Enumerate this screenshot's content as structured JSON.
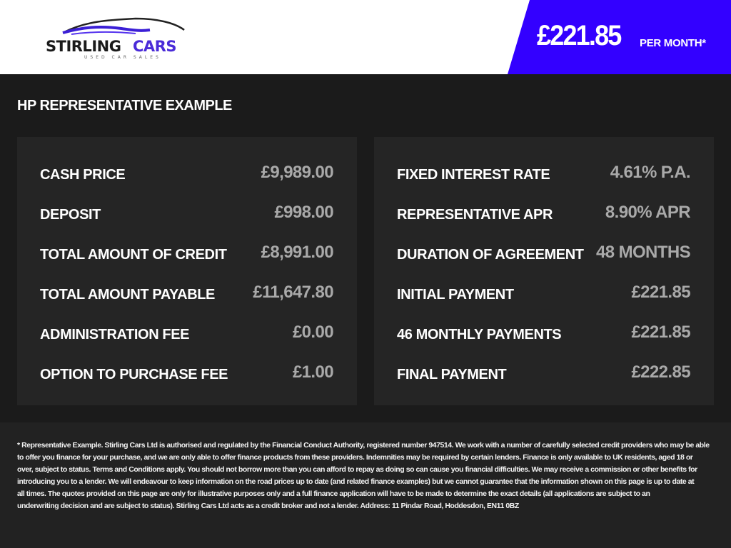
{
  "header": {
    "logo_text": "STIRLING CARS",
    "logo_subtext": "USED CAR SALES",
    "price": "£221.85",
    "price_suffix": "PER MONTH*",
    "brand_color": "#3300ff"
  },
  "section_title": "HP REPRESENTATIVE EXAMPLE",
  "left_panel": [
    {
      "label": "CASH PRICE",
      "value": "£9,989.00"
    },
    {
      "label": "DEPOSIT",
      "value": "£998.00"
    },
    {
      "label": "TOTAL AMOUNT OF CREDIT",
      "value": "£8,991.00"
    },
    {
      "label": "TOTAL AMOUNT PAYABLE",
      "value": "£11,647.80"
    },
    {
      "label": "ADMINISTRATION FEE",
      "value": "£0.00"
    },
    {
      "label": "OPTION TO PURCHASE FEE",
      "value": "£1.00"
    }
  ],
  "right_panel": [
    {
      "label": "FIXED INTEREST RATE",
      "value": "4.61% P.A."
    },
    {
      "label": "REPRESENTATIVE APR",
      "value": "8.90% APR"
    },
    {
      "label": "DURATION OF AGREEMENT",
      "value": "48 MONTHS"
    },
    {
      "label": "INITIAL PAYMENT",
      "value": "£221.85"
    },
    {
      "label": "46 MONTHLY PAYMENTS",
      "value": "£221.85"
    },
    {
      "label": "FINAL PAYMENT",
      "value": "£222.85"
    }
  ],
  "disclaimer_lines": [
    "* Representative Example. Stirling Cars Ltd is authorised and regulated by the Financial Conduct Authority, registered number 947514. We work with a number of carefully selected credit providers who may be able",
    "to offer you finance for your purchase, and we are only able to offer finance products from these providers. Indemnities may be required by certain lenders. Finance is only available to UK residents, aged 18 or",
    "over, subject to status. Terms and Conditions apply. You should not borrow more than you can afford to repay as doing so can cause you financial difficulties. We may receive a commission or other benefits for",
    "introducing you to a lender. We will endeavour to keep information on the road prices up to date (and related finance examples) but we cannot guarantee that the information shown on this page is up to date at",
    "all times. The quotes provided on this page are only for illustrative purposes only and a full finance application will have to be made to determine the exact details (all applications are subject to an",
    "underwriting decision and are subject to status). Stirling Cars Ltd acts as a credit broker and not a lender. Address: 11 Pindar Road, Hoddesdon, EN11 0BZ"
  ]
}
